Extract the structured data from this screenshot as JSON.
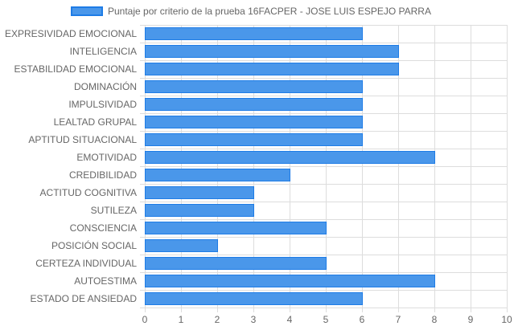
{
  "chart_data": {
    "type": "bar",
    "orientation": "horizontal",
    "categories": [
      "EXPRESIVIDAD EMOCIONAL",
      "INTELIGENCIA",
      "ESTABILIDAD EMOCIONAL",
      "DOMINACIÓN",
      "IMPULSIVIDAD",
      "LEALTAD GRUPAL",
      "APTITUD SITUACIONAL",
      "EMOTIVIDAD",
      "CREDIBILIDAD",
      "ACTITUD COGNITIVA",
      "SUTILEZA",
      "CONSCIENCIA",
      "POSICIÓN SOCIAL",
      "CERTEZA INDIVIDUAL",
      "AUTOESTIMA",
      "ESTADO DE ANSIEDAD"
    ],
    "series": [
      {
        "name": "Puntaje por criterio de la prueba 16FACPER - JOSE LUIS ESPEJO PARRA",
        "values": [
          6,
          7,
          7,
          6,
          6,
          6,
          6,
          8,
          4,
          3,
          3,
          5,
          2,
          5,
          8,
          6
        ]
      }
    ],
    "xlim": [
      0,
      10
    ],
    "x_ticks": [
      "0",
      "1",
      "2",
      "3",
      "4",
      "5",
      "6",
      "7",
      "8",
      "9",
      "10"
    ],
    "grid": true,
    "legend_position": "top",
    "colors": {
      "bar_fill": "#4a97ea",
      "bar_border": "#1e7ce6",
      "grid": "#dddddd",
      "text": "#666666"
    }
  }
}
